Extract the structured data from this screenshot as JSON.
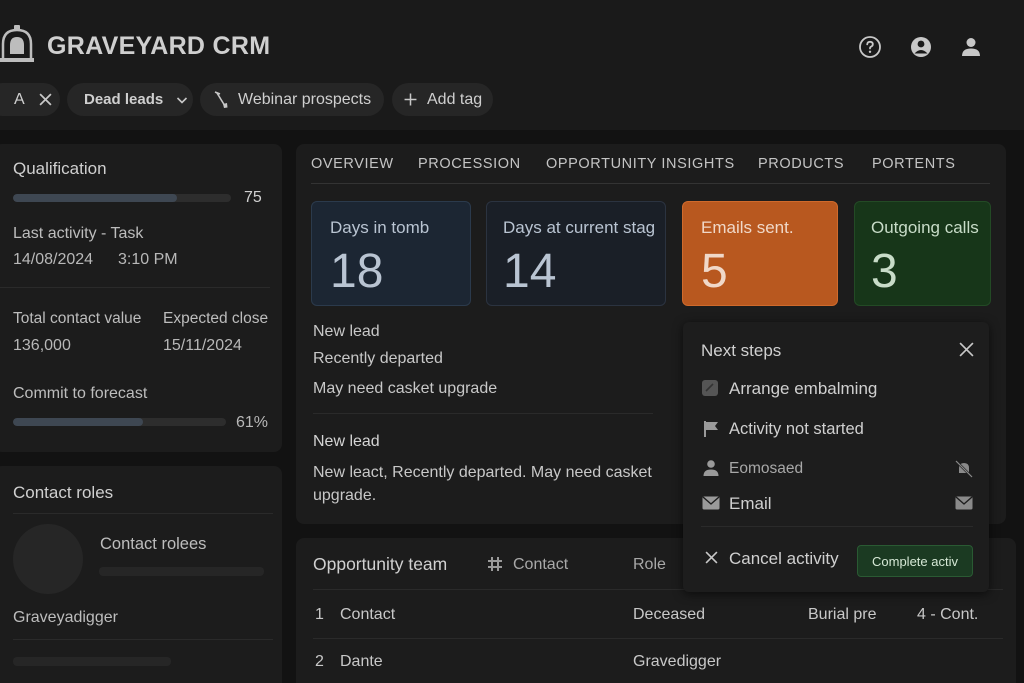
{
  "app": {
    "title": "GRAVEYARD CRM"
  },
  "header_icons": [
    "help-icon",
    "account-circle-icon",
    "user-icon"
  ],
  "chips": {
    "filter_a": "A",
    "dead_leads": "Dead leads",
    "webinar": "Webinar prospects",
    "add_tag": "Add tag"
  },
  "qualification": {
    "title": "Qualification",
    "score": "75",
    "score_level": 0.75,
    "last_activity_label": "Last activity - Task",
    "last_activity_date": "14/08/2024",
    "last_activity_time": "3:10 PM",
    "total_value_label": "Total contact value",
    "total_value": "136,000",
    "expected_close_label": "Expected close",
    "expected_close": "15/11/2024",
    "commit_label": "Commit to forecast",
    "commit_percent": "61%",
    "commit_level": 0.61
  },
  "contact_roles": {
    "title": "Contact roles",
    "placeholder_label": "Contact rolees",
    "role": "Graveyadigger"
  },
  "tabs": [
    "OVERVIEW",
    "PROCESSION",
    "OPPORTUNITY INSIGHTS",
    "PRODUCTS",
    "PORTENTS"
  ],
  "stats": [
    {
      "label": "Days in tomb",
      "value": "18",
      "bg": "#1c2633",
      "border": "#2b3a4c",
      "color": "#b9c4d2"
    },
    {
      "label": "Days at current stag",
      "value": "14",
      "bg": "#1a1f27",
      "border": "#2b3340",
      "color": "#b9c4d2"
    },
    {
      "label": "Emails sent.",
      "value": "5",
      "bg": "#b8581f",
      "border": "#cf6a2c",
      "color": "#f0d8c8"
    },
    {
      "label": "Outgoing calls",
      "value": "3",
      "bg": "#173619",
      "border": "#234a25",
      "color": "#c8dcc8"
    }
  ],
  "overview": {
    "line1": "New lead",
    "line2": "Recently departed",
    "line3": "May need casket upgrade",
    "heading2": "New lead",
    "paragraph_line1": "New leact, Recently departed. May need casket",
    "paragraph_line2": "upgrade."
  },
  "next_steps": {
    "title": "Next steps",
    "task": "Arrange embalming",
    "status": "Activity not started",
    "assignee": "Eomosaed",
    "type": "Email",
    "cancel": "Cancel activity",
    "complete": "Complete activ"
  },
  "opportunity_team": {
    "title": "Opportunity team",
    "col_contact": "Contact",
    "col_role": "Role",
    "rows": [
      {
        "num": "1",
        "name": "Contact",
        "role": "Deceased",
        "extra": "Burial pre",
        "stage": "4 - Cont."
      },
      {
        "num": "2",
        "name": "Dante",
        "role": "Gravedigger",
        "extra": "",
        "stage": ""
      }
    ]
  }
}
